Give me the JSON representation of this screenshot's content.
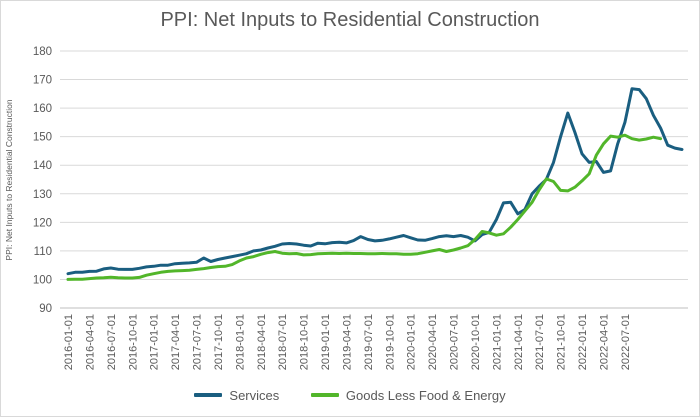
{
  "chart_data": {
    "type": "line",
    "title": "PPI: Net Inputs to Residential Construction",
    "ylabel": "PPI: Net Inputs to Residential Construction",
    "xlabel": "",
    "ylim": [
      90,
      180
    ],
    "yticks": [
      90,
      100,
      110,
      120,
      130,
      140,
      150,
      160,
      170,
      180
    ],
    "grid": true,
    "legend": "bottom",
    "xtick_labels": [
      "2016-01-01",
      "2016-04-01",
      "2016-07-01",
      "2016-10-01",
      "2017-01-01",
      "2017-04-01",
      "2017-07-01",
      "2017-10-01",
      "2018-01-01",
      "2018-04-01",
      "2018-07-01",
      "2018-10-01",
      "2019-01-01",
      "2019-04-01",
      "2019-07-01",
      "2019-10-01",
      "2020-01-01",
      "2020-04-01",
      "2020-07-01",
      "2020-10-01",
      "2021-01-01",
      "2021-04-01",
      "2021-07-01",
      "2021-10-01",
      "2022-01-01",
      "2022-04-01",
      "2022-07-01"
    ],
    "x_start": "2016-01-01",
    "x_frequency": "monthly",
    "series": [
      {
        "name": "Services",
        "color": "#1a5e80",
        "values": [
          102,
          102.5,
          102.5,
          102.8,
          102.9,
          103.7,
          104,
          103.6,
          103.5,
          103.5,
          103.9,
          104.4,
          104.6,
          105,
          105,
          105.5,
          105.7,
          105.8,
          106,
          107.5,
          106.3,
          107,
          107.5,
          108,
          108.5,
          109,
          110,
          110.3,
          111,
          111.6,
          112.4,
          112.6,
          112.4,
          112,
          111.7,
          112.7,
          112.5,
          112.9,
          113,
          112.8,
          113.6,
          115,
          114,
          113.5,
          113.7,
          114.2,
          114.8,
          115.4,
          114.6,
          113.8,
          113.7,
          114.3,
          115,
          115.3,
          115,
          115.4,
          114.8,
          113.5,
          115.7,
          116.5,
          121,
          126.8,
          127,
          123,
          124.5,
          130,
          132.7,
          135,
          141,
          150,
          158.3,
          151.5,
          144,
          141,
          141.3,
          137.5,
          138,
          147.5,
          155,
          166.8,
          166.5,
          163.3,
          157.5,
          153,
          147,
          146,
          145.5
        ]
      },
      {
        "name": "Goods Less Food & Energy",
        "color": "#52b62a",
        "values": [
          100,
          100.1,
          100.1,
          100.3,
          100.5,
          100.6,
          100.8,
          100.6,
          100.5,
          100.5,
          100.7,
          101.5,
          102,
          102.5,
          102.8,
          103,
          103.1,
          103.2,
          103.5,
          103.8,
          104.2,
          104.5,
          104.6,
          105.2,
          106.5,
          107.5,
          108,
          108.8,
          109.4,
          109.8,
          109.2,
          109,
          109.1,
          108.6,
          108.7,
          109,
          109.1,
          109.2,
          109.1,
          109.2,
          109.1,
          109.1,
          109,
          109,
          109.1,
          109,
          109,
          108.8,
          108.8,
          109,
          109.5,
          110,
          110.5,
          109.8,
          110.3,
          111,
          111.8,
          114,
          116.8,
          116.3,
          115.5,
          116,
          118.3,
          121,
          124,
          127,
          131.4,
          135.2,
          134.3,
          131.2,
          131,
          132.3,
          134.5,
          137,
          143.5,
          147.5,
          150.2,
          149.8,
          150.5,
          149.3,
          148.8,
          149.2,
          149.8,
          149.3
        ]
      }
    ]
  }
}
